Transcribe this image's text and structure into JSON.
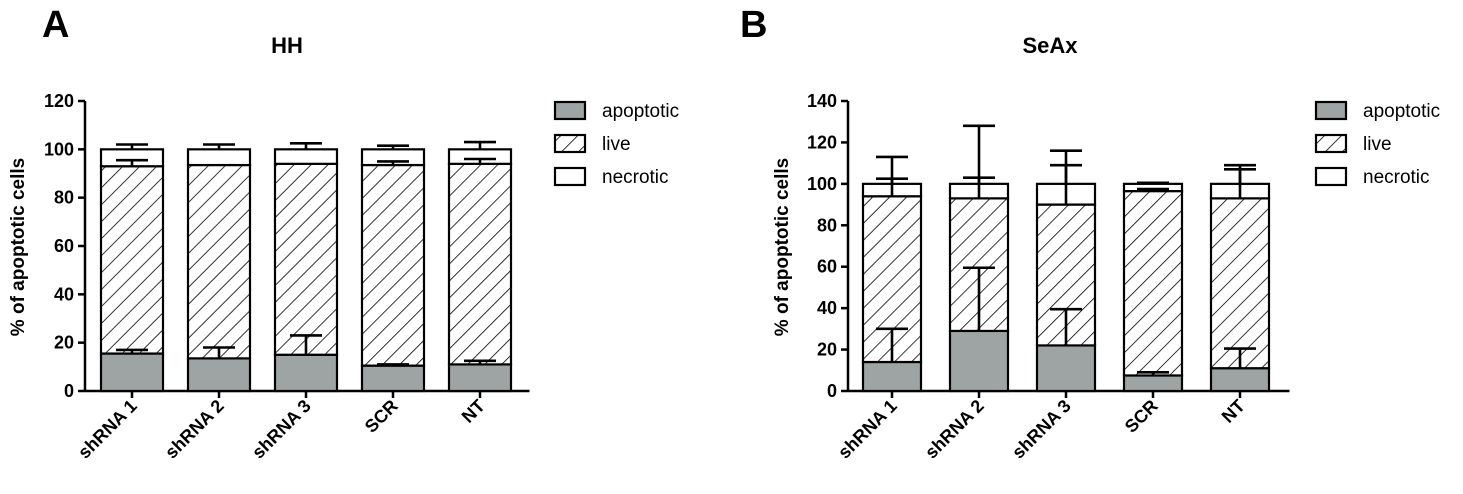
{
  "chart_data": [
    {
      "type": "bar",
      "stacked": true,
      "panel": "A",
      "title": "HH",
      "ylabel": "% of apoptotic cells",
      "xlabel": "",
      "ylim": [
        0,
        120
      ],
      "yticks": [
        0,
        20,
        40,
        60,
        80,
        100,
        120
      ],
      "categories": [
        "shRNA 1",
        "shRNA 2",
        "shRNA 3",
        "SCR",
        "NT"
      ],
      "series": [
        {
          "name": "apoptotic",
          "values": [
            15.5,
            13.5,
            15,
            10.5,
            11
          ],
          "errors": [
            1.5,
            4.5,
            8,
            0.5,
            1.5
          ]
        },
        {
          "name": "live",
          "values": [
            77.5,
            80,
            79,
            83,
            83
          ],
          "errors": [
            2.5,
            0,
            0,
            1.5,
            2
          ]
        },
        {
          "name": "necrotic",
          "values": [
            7,
            6.5,
            6,
            6.5,
            6
          ],
          "errors": [
            2,
            2,
            2.5,
            1.5,
            3
          ]
        }
      ],
      "colors": {
        "apoptotic": "#9ea4a4",
        "live": "hatch",
        "necrotic": "#ffffff"
      }
    },
    {
      "type": "bar",
      "stacked": true,
      "panel": "B",
      "title": "SeAx",
      "ylabel": "% of apoptotic cells",
      "xlabel": "",
      "ylim": [
        0,
        140
      ],
      "yticks": [
        0,
        20,
        40,
        60,
        80,
        100,
        120,
        140
      ],
      "categories": [
        "shRNA 1",
        "shRNA 2",
        "shRNA 3",
        "SCR",
        "NT"
      ],
      "series": [
        {
          "name": "apoptotic",
          "values": [
            14,
            29,
            22,
            7.5,
            11
          ],
          "errors": [
            16,
            30.5,
            17.5,
            1.5,
            9.5
          ]
        },
        {
          "name": "live",
          "values": [
            80,
            64,
            68,
            89,
            82
          ],
          "errors": [
            8.5,
            10,
            19,
            1,
            14
          ]
        },
        {
          "name": "necrotic",
          "values": [
            6,
            7,
            10,
            3.5,
            7
          ],
          "errors": [
            13,
            28,
            16,
            0.5,
            9
          ]
        }
      ],
      "colors": {
        "apoptotic": "#9ea4a4",
        "live": "hatch",
        "necrotic": "#ffffff"
      }
    }
  ]
}
